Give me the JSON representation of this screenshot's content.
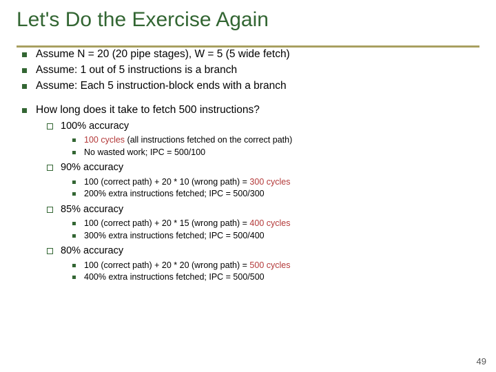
{
  "colors": {
    "title": "#336633",
    "underline": "#a8a060",
    "bullet_square": "#336633",
    "bullet_hollow": "#336633",
    "bullet_small": "#336633",
    "text": "#000000",
    "accent_red": "#b33939",
    "pagenum": "#555555"
  },
  "title": "Let's Do the Exercise Again",
  "assumptions": [
    "Assume N = 20 (20 pipe stages), W = 5 (5 wide fetch)",
    "Assume: 1 out of 5 instructions is a branch",
    "Assume: Each 5 instruction-block ends with a branch"
  ],
  "question": "How long does it take to fetch 500 instructions?",
  "cases": [
    {
      "label": "100% accuracy",
      "lines": [
        {
          "pre": "",
          "cycles": "100 cycles",
          "post": " (all instructions fetched on the correct path)"
        },
        {
          "pre": "No wasted work; IPC = 500/100",
          "cycles": "",
          "post": ""
        }
      ]
    },
    {
      "label": "90% accuracy",
      "lines": [
        {
          "pre": "100 (correct path) + 20 * 10 (wrong path) = ",
          "cycles": "300 cycles",
          "post": ""
        },
        {
          "pre": "200% extra instructions fetched; IPC = 500/300",
          "cycles": "",
          "post": ""
        }
      ]
    },
    {
      "label": "85% accuracy",
      "lines": [
        {
          "pre": "100 (correct path) + 20 * 15 (wrong path) = ",
          "cycles": "400 cycles",
          "post": ""
        },
        {
          "pre": "300% extra instructions fetched; IPC = 500/400",
          "cycles": "",
          "post": ""
        }
      ]
    },
    {
      "label": "80% accuracy",
      "lines": [
        {
          "pre": "100 (correct path) + 20 * 20 (wrong path) = ",
          "cycles": "500 cycles",
          "post": ""
        },
        {
          "pre": "400% extra instructions fetched; IPC = 500/500",
          "cycles": "",
          "post": ""
        }
      ]
    }
  ],
  "page_number": "49"
}
